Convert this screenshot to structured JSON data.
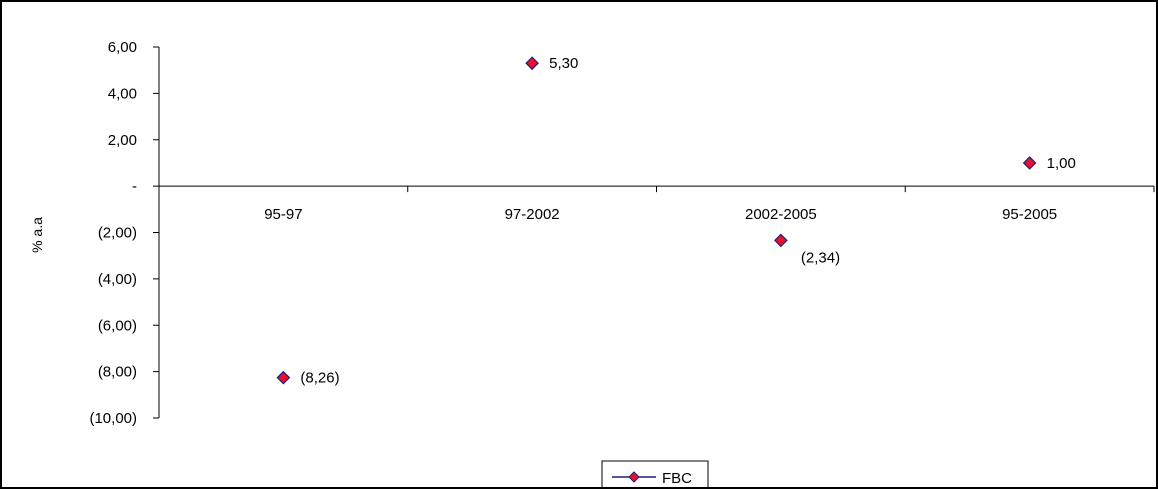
{
  "chart_data": {
    "type": "line",
    "categories": [
      "95-97",
      "97-2002",
      "2002-2005",
      "95-2005"
    ],
    "series": [
      {
        "name": "FBC",
        "values": [
          -8.26,
          5.3,
          -2.34,
          1.0
        ],
        "data_labels": [
          "(8,26)",
          "5,30",
          "(2,34)",
          "1,00"
        ]
      }
    ],
    "ylabel": "% a.a",
    "ylim": [
      -10,
      6
    ],
    "y_ticks": [
      6,
      4,
      2,
      0,
      -2,
      -4,
      -6,
      -8,
      -10
    ],
    "y_tick_labels": [
      "6,00",
      "4,00",
      "2,00",
      "-",
      "(2,00)",
      "(4,00)",
      "(6,00)",
      "(8,00)",
      "(10,00)"
    ],
    "line_visible": false,
    "marker": "diamond",
    "marker_color": "#e8112d",
    "marker_edge_color": "#1f1f7a",
    "grid": false,
    "legend_position": "bottom-center"
  }
}
